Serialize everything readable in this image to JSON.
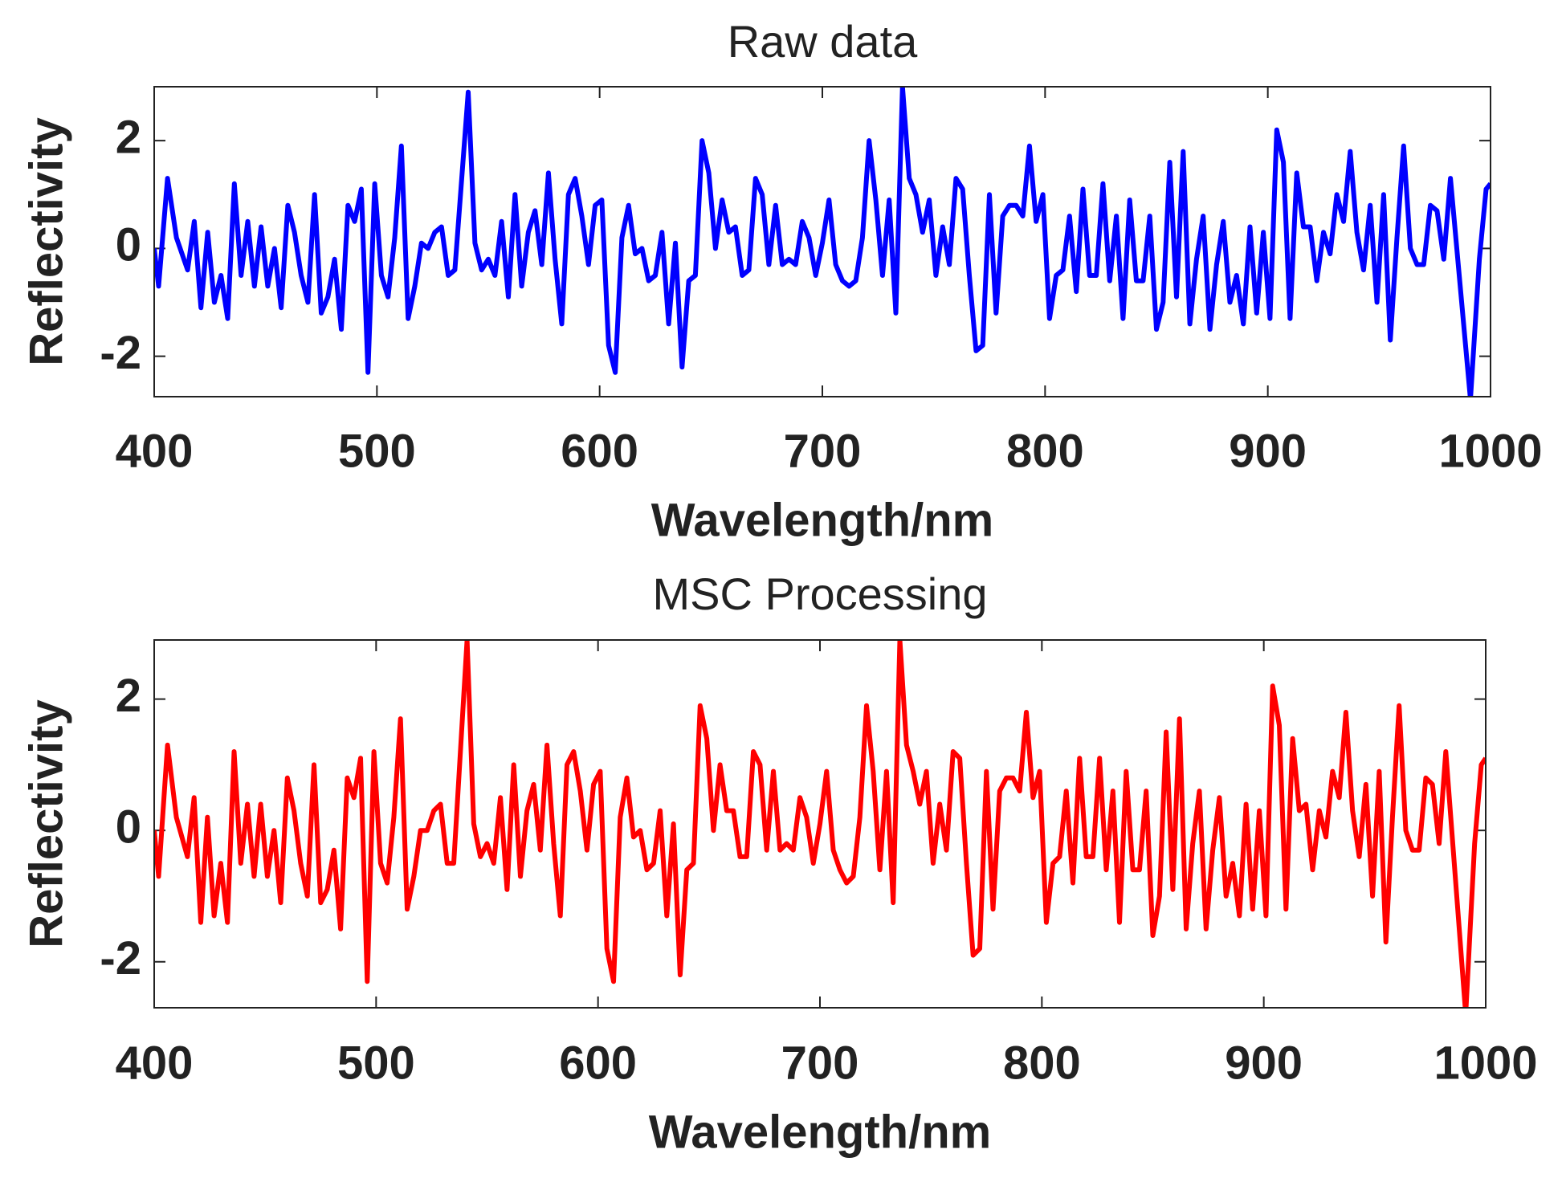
{
  "chart_data": [
    {
      "type": "line",
      "title": "Raw data",
      "x_label": "Wavelength/nm",
      "y_label": "Reflectivity",
      "xlim": [
        400,
        1000
      ],
      "xticks": [
        400,
        500,
        600,
        700,
        800,
        900,
        1000
      ],
      "ylim": [
        -2.75,
        3.0
      ],
      "yticks": [
        -2,
        0,
        2
      ],
      "x": [
        400,
        402,
        406,
        410,
        415,
        418,
        421,
        424,
        427,
        430,
        433,
        436,
        439,
        442,
        445,
        448,
        451,
        454,
        457,
        460,
        463,
        466,
        469,
        472,
        475,
        478,
        481,
        484,
        487,
        490,
        493,
        496,
        499,
        502,
        505,
        508,
        511,
        514,
        517,
        520,
        523,
        526,
        529,
        532,
        535,
        541,
        544,
        547,
        550,
        553,
        556,
        559,
        562,
        565,
        568,
        571,
        574,
        577,
        580,
        583,
        586,
        589,
        592,
        595,
        598,
        601,
        604,
        607,
        610,
        613,
        616,
        619,
        622,
        625,
        628,
        631,
        634,
        637,
        640,
        643,
        646,
        649,
        652,
        655,
        658,
        661,
        664,
        667,
        670,
        673,
        676,
        679,
        682,
        685,
        688,
        691,
        694,
        697,
        700,
        703,
        706,
        709,
        712,
        715,
        718,
        721,
        724,
        727,
        730,
        733,
        736,
        739,
        742,
        745,
        748,
        751,
        754,
        757,
        760,
        763,
        766,
        769,
        772,
        775,
        778,
        781,
        784,
        787,
        790,
        793,
        796,
        799,
        802,
        805,
        808,
        811,
        814,
        817,
        820,
        823,
        826,
        829,
        832,
        835,
        838,
        841,
        844,
        847,
        850,
        853,
        856,
        859,
        862,
        865,
        868,
        871,
        874,
        877,
        880,
        883,
        886,
        889,
        892,
        895,
        898,
        901,
        904,
        907,
        910,
        913,
        916,
        919,
        922,
        925,
        928,
        931,
        934,
        937,
        940,
        943,
        946,
        949,
        952,
        955,
        958,
        961,
        964,
        967,
        970,
        973,
        976,
        979,
        982,
        991,
        995,
        998,
        1000
      ],
      "series": [
        {
          "color": "#0000ff",
          "values": [
            0,
            -0.7,
            1.3,
            0.2,
            -0.4,
            0.5,
            -1.1,
            0.3,
            -1.0,
            -0.5,
            -1.3,
            1.2,
            -0.5,
            0.5,
            -0.7,
            0.4,
            -0.7,
            0.0,
            -1.1,
            0.8,
            0.3,
            -0.5,
            -1.0,
            1.0,
            -1.2,
            -0.9,
            -0.2,
            -1.5,
            0.8,
            0.5,
            1.1,
            -2.3,
            1.2,
            -0.5,
            -0.9,
            0.2,
            1.9,
            -1.3,
            -0.7,
            0.1,
            0.0,
            0.3,
            0.4,
            -0.5,
            -0.4,
            2.9,
            0.1,
            -0.4,
            -0.2,
            -0.5,
            0.5,
            -0.9,
            1.0,
            -0.7,
            0.3,
            0.7,
            -0.3,
            1.4,
            -0.2,
            -1.4,
            1.0,
            1.3,
            0.6,
            -0.3,
            0.8,
            0.9,
            -1.8,
            -2.3,
            0.2,
            0.8,
            -0.1,
            0.0,
            -0.6,
            -0.5,
            0.3,
            -1.4,
            0.1,
            -2.2,
            -0.6,
            -0.5,
            2.0,
            1.4,
            0.0,
            0.9,
            0.3,
            0.4,
            -0.5,
            -0.4,
            1.3,
            1.0,
            -0.3,
            0.8,
            -0.3,
            -0.2,
            -0.3,
            0.5,
            0.2,
            -0.5,
            0.1,
            0.9,
            -0.3,
            -0.6,
            -0.7,
            -0.6,
            0.2,
            2.0,
            0.9,
            -0.5,
            0.9,
            -1.2,
            3.0,
            1.3,
            1.0,
            0.3,
            0.9,
            -0.5,
            0.4,
            -0.3,
            1.3,
            1.1,
            -0.5,
            -1.9,
            -1.8,
            1.0,
            -1.2,
            0.6,
            0.8,
            0.8,
            0.6,
            1.9,
            0.5,
            1.0,
            -1.3,
            -0.5,
            -0.4,
            0.6,
            -0.8,
            1.1,
            -0.5,
            -0.5,
            1.2,
            -0.6,
            0.6,
            -1.3,
            0.9,
            -0.6,
            -0.6,
            0.6,
            -1.5,
            -1.0,
            1.6,
            -0.9,
            1.8,
            -1.4,
            -0.2,
            0.6,
            -1.5,
            -0.3,
            0.5,
            -1.0,
            -0.5,
            -1.4,
            0.4,
            -1.2,
            0.3,
            -1.3,
            2.2,
            1.6,
            -1.3,
            1.4,
            0.4,
            0.4,
            -0.6,
            0.3,
            -0.1,
            1.0,
            0.5,
            1.8,
            0.3,
            -0.4,
            0.8,
            -1.0,
            1.0,
            -1.7,
            0.2,
            1.9,
            0.0,
            -0.3,
            -0.3,
            0.8,
            0.7,
            -0.2,
            1.3,
            -2.8,
            -0.2,
            1.1,
            1.2
          ]
        }
      ]
    },
    {
      "type": "line",
      "title": "MSC Processing",
      "x_label": "Wavelength/nm",
      "y_label": "Reflectivity",
      "xlim": [
        400,
        1000
      ],
      "xticks": [
        400,
        500,
        600,
        700,
        800,
        900,
        1000
      ],
      "ylim": [
        -2.7,
        2.9
      ],
      "yticks": [
        -2,
        0,
        2
      ],
      "x": [
        400,
        402,
        406,
        410,
        415,
        418,
        421,
        424,
        427,
        430,
        433,
        436,
        439,
        442,
        445,
        448,
        451,
        454,
        457,
        460,
        463,
        466,
        469,
        472,
        475,
        478,
        481,
        484,
        487,
        490,
        493,
        496,
        499,
        502,
        505,
        508,
        511,
        514,
        517,
        520,
        523,
        526,
        529,
        532,
        535,
        541,
        544,
        547,
        550,
        553,
        556,
        559,
        562,
        565,
        568,
        571,
        574,
        577,
        580,
        583,
        586,
        589,
        592,
        595,
        598,
        601,
        604,
        607,
        610,
        613,
        616,
        619,
        622,
        625,
        628,
        631,
        634,
        637,
        640,
        643,
        646,
        649,
        652,
        655,
        658,
        661,
        664,
        667,
        670,
        673,
        676,
        679,
        682,
        685,
        688,
        691,
        694,
        697,
        700,
        703,
        706,
        709,
        712,
        715,
        718,
        721,
        724,
        727,
        730,
        733,
        736,
        739,
        742,
        745,
        748,
        751,
        754,
        757,
        760,
        763,
        766,
        769,
        772,
        775,
        778,
        781,
        784,
        787,
        790,
        793,
        796,
        799,
        802,
        805,
        808,
        811,
        814,
        817,
        820,
        823,
        826,
        829,
        832,
        835,
        838,
        841,
        844,
        847,
        850,
        853,
        856,
        859,
        862,
        865,
        868,
        871,
        874,
        877,
        880,
        883,
        886,
        889,
        892,
        895,
        898,
        901,
        904,
        907,
        910,
        913,
        916,
        919,
        922,
        925,
        928,
        931,
        934,
        937,
        940,
        943,
        946,
        949,
        952,
        955,
        958,
        961,
        964,
        967,
        970,
        973,
        976,
        979,
        982,
        991,
        995,
        998,
        1000
      ],
      "series": [
        {
          "color": "#ff0000",
          "values": [
            0,
            -0.7,
            1.3,
            0.2,
            -0.4,
            0.5,
            -1.4,
            0.2,
            -1.3,
            -0.5,
            -1.4,
            1.2,
            -0.5,
            0.4,
            -0.7,
            0.4,
            -0.7,
            0.0,
            -1.1,
            0.8,
            0.3,
            -0.5,
            -1.0,
            1.0,
            -1.1,
            -0.9,
            -0.3,
            -1.5,
            0.8,
            0.5,
            1.1,
            -2.3,
            1.2,
            -0.5,
            -0.8,
            0.2,
            1.7,
            -1.2,
            -0.7,
            0.0,
            0.0,
            0.3,
            0.4,
            -0.5,
            -0.5,
            2.9,
            0.1,
            -0.4,
            -0.2,
            -0.5,
            0.5,
            -0.9,
            1.0,
            -0.7,
            0.3,
            0.7,
            -0.3,
            1.3,
            -0.2,
            -1.3,
            1.0,
            1.2,
            0.6,
            -0.3,
            0.7,
            0.9,
            -1.8,
            -2.3,
            0.2,
            0.8,
            -0.1,
            0.0,
            -0.6,
            -0.5,
            0.3,
            -1.3,
            0.1,
            -2.2,
            -0.6,
            -0.5,
            1.9,
            1.4,
            0.0,
            1.0,
            0.3,
            0.3,
            -0.4,
            -0.4,
            1.2,
            1.0,
            -0.3,
            0.9,
            -0.3,
            -0.2,
            -0.3,
            0.5,
            0.2,
            -0.5,
            0.1,
            0.9,
            -0.3,
            -0.6,
            -0.8,
            -0.7,
            0.2,
            1.9,
            0.9,
            -0.6,
            0.9,
            -1.1,
            2.9,
            1.3,
            0.9,
            0.4,
            0.9,
            -0.5,
            0.4,
            -0.3,
            1.2,
            1.1,
            -0.5,
            -1.9,
            -1.8,
            0.9,
            -1.2,
            0.6,
            0.8,
            0.8,
            0.6,
            1.8,
            0.5,
            0.9,
            -1.4,
            -0.5,
            -0.4,
            0.6,
            -0.8,
            1.1,
            -0.4,
            -0.4,
            1.1,
            -0.6,
            0.6,
            -1.4,
            0.9,
            -0.6,
            -0.6,
            0.6,
            -1.6,
            -1.0,
            1.5,
            -0.9,
            1.7,
            -1.5,
            -0.2,
            0.6,
            -1.5,
            -0.3,
            0.5,
            -1.0,
            -0.5,
            -1.3,
            0.4,
            -1.2,
            0.3,
            -1.3,
            2.2,
            1.6,
            -1.2,
            1.4,
            0.3,
            0.4,
            -0.6,
            0.3,
            -0.1,
            0.9,
            0.5,
            1.8,
            0.3,
            -0.4,
            0.7,
            -1.0,
            0.9,
            -1.7,
            0.2,
            1.9,
            0.0,
            -0.3,
            -0.3,
            0.8,
            0.7,
            -0.2,
            1.2,
            -2.8,
            -0.2,
            1.0,
            1.1
          ]
        }
      ]
    }
  ]
}
